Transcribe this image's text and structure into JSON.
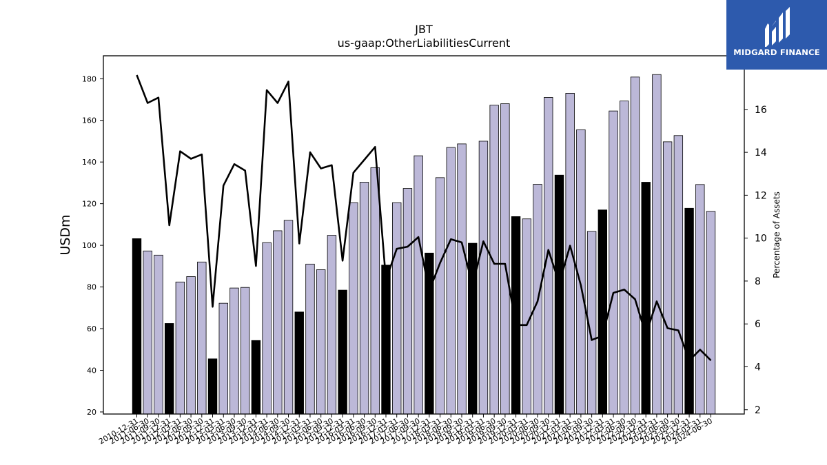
{
  "brand": {
    "name": "MIDGARD FINANCE",
    "logo_icon": "midgard-logo-icon",
    "color": "#2d5aad"
  },
  "chart_data": {
    "type": "bar",
    "title": "JBT",
    "subtitle": "us-gaap:OtherLiabilitiesCurrent",
    "ylabel": "USDm",
    "y2label": "Percentage of Assets",
    "ylim": [
      19,
      191
    ],
    "y2lim": [
      1.8,
      18.5
    ],
    "yticks": [
      20,
      40,
      60,
      80,
      100,
      120,
      140,
      160,
      180
    ],
    "y2ticks": [
      2,
      4,
      6,
      8,
      10,
      12,
      14,
      16
    ],
    "bar_colors": {
      "annual": "#000000",
      "quarterly": "#bcb8d8"
    },
    "line_color": "#000000",
    "categories": [
      "2010-12-31",
      "2011-06-30",
      "2011-09-30",
      "2011-12-31",
      "2012-03-31",
      "2012-06-30",
      "2012-09-30",
      "2012-12-31",
      "2013-03-31",
      "2013-06-30",
      "2013-09-30",
      "2013-12-31",
      "2014-03-31",
      "2014-06-30",
      "2014-09-30",
      "2014-12-31",
      "2015-03-31",
      "2015-06-30",
      "2015-09-30",
      "2015-12-31",
      "2016-03-31",
      "2016-06-30",
      "2016-09-30",
      "2016-12-31",
      "2017-03-31",
      "2017-06-30",
      "2017-09-30",
      "2017-12-31",
      "2018-03-31",
      "2018-06-30",
      "2018-09-30",
      "2018-12-31",
      "2019-03-31",
      "2019-06-30",
      "2019-09-30",
      "2019-12-31",
      "2020-03-31",
      "2020-06-30",
      "2020-09-30",
      "2020-12-31",
      "2021-03-31",
      "2021-06-30",
      "2021-09-30",
      "2021-12-31",
      "2022-03-31",
      "2022-06-30",
      "2022-09-30",
      "2022-12-31",
      "2023-03-31",
      "2023-06-30",
      "2023-09-30",
      "2023-12-31",
      "2024-03-31",
      "2024-06-30"
    ],
    "tick_labels": [
      "2010-12-31",
      "2011-06-30",
      "2011-09-30",
      "2011-12-31",
      "2012-03-31",
      "2012-06-30",
      "2012-09-30",
      "2012-12-31",
      "2013-03-31",
      "2013-06-30",
      "2013-09-30",
      "2013-12-31",
      "2014-03-31",
      "2014-06-30",
      "2014-09-30",
      "2014-12-31",
      "2015-03-31",
      "2015-06-30",
      "2015-09-30",
      "2015-12-31",
      "2016-03-31",
      "2016-06-30",
      "2016-09-30",
      "2016-12-31",
      "2017-03-31",
      "2017-06-30",
      "2017-09-30",
      "2017-12-31",
      "2018-03-31",
      "2018-06-30",
      "2018-09-30",
      "2018-12-31",
      "2019-03-31",
      "2019-06-30",
      "2019-09-30",
      "2019-12-31",
      "2020-03-31",
      "2020-06-30",
      "2020-09-30",
      "2020-12-31",
      "2021-03-31",
      "2021-06-30",
      "2021-09-30",
      "2021-12-31",
      "2022-03-31",
      "2022-06-30",
      "2022-09-30",
      "2022-12-31",
      "2023-03-31",
      "2023-06-30",
      "2023-09-30",
      "2023-12-31",
      "2024-03-31",
      "2024-06-30"
    ],
    "annual_flags": [
      1,
      0,
      0,
      1,
      0,
      0,
      0,
      1,
      0,
      0,
      0,
      1,
      0,
      0,
      0,
      1,
      0,
      0,
      0,
      1,
      0,
      0,
      0,
      1,
      0,
      0,
      0,
      1,
      0,
      0,
      0,
      1,
      0,
      0,
      0,
      1,
      0,
      0,
      0,
      1,
      0,
      0,
      0,
      1,
      0,
      0,
      0,
      1,
      0,
      0,
      0,
      1,
      0,
      0
    ],
    "series": [
      {
        "kind": "bar",
        "values": [
          103.2,
          97.3,
          95.3,
          62.5,
          82.4,
          85.0,
          92.0,
          45.5,
          72.2,
          79.5,
          79.8,
          54.3,
          101.3,
          107.0,
          112.0,
          68.0,
          91.0,
          88.3,
          104.8,
          78.5,
          120.5,
          130.3,
          137.3,
          90.5,
          120.5,
          127.3,
          143.0,
          96.3,
          132.5,
          147.0,
          148.7,
          101.0,
          150.0,
          167.3,
          168.0,
          113.8,
          112.7,
          129.3,
          171.0,
          133.7,
          173.0,
          155.5,
          106.7,
          117.0,
          164.5,
          169.3,
          180.8,
          130.3,
          182.0,
          149.7,
          152.7,
          117.8,
          129.2,
          116.3
        ]
      },
      {
        "kind": "line",
        "axis": "y2",
        "values": [
          17.6,
          16.3,
          16.55,
          10.6,
          14.05,
          13.7,
          13.9,
          6.8,
          12.45,
          13.45,
          13.15,
          8.7,
          16.9,
          16.3,
          17.3,
          9.75,
          14.0,
          13.25,
          13.4,
          8.95,
          13.05,
          13.65,
          14.25,
          8.05,
          9.5,
          9.6,
          10.05,
          7.55,
          8.85,
          9.95,
          9.8,
          7.8,
          9.85,
          8.8,
          8.8,
          5.95,
          5.95,
          7.05,
          9.45,
          7.9,
          9.65,
          7.8,
          5.25,
          5.45,
          7.45,
          7.6,
          7.15,
          5.5,
          7.05,
          5.8,
          5.7,
          4.3,
          4.8,
          4.3
        ]
      }
    ]
  }
}
